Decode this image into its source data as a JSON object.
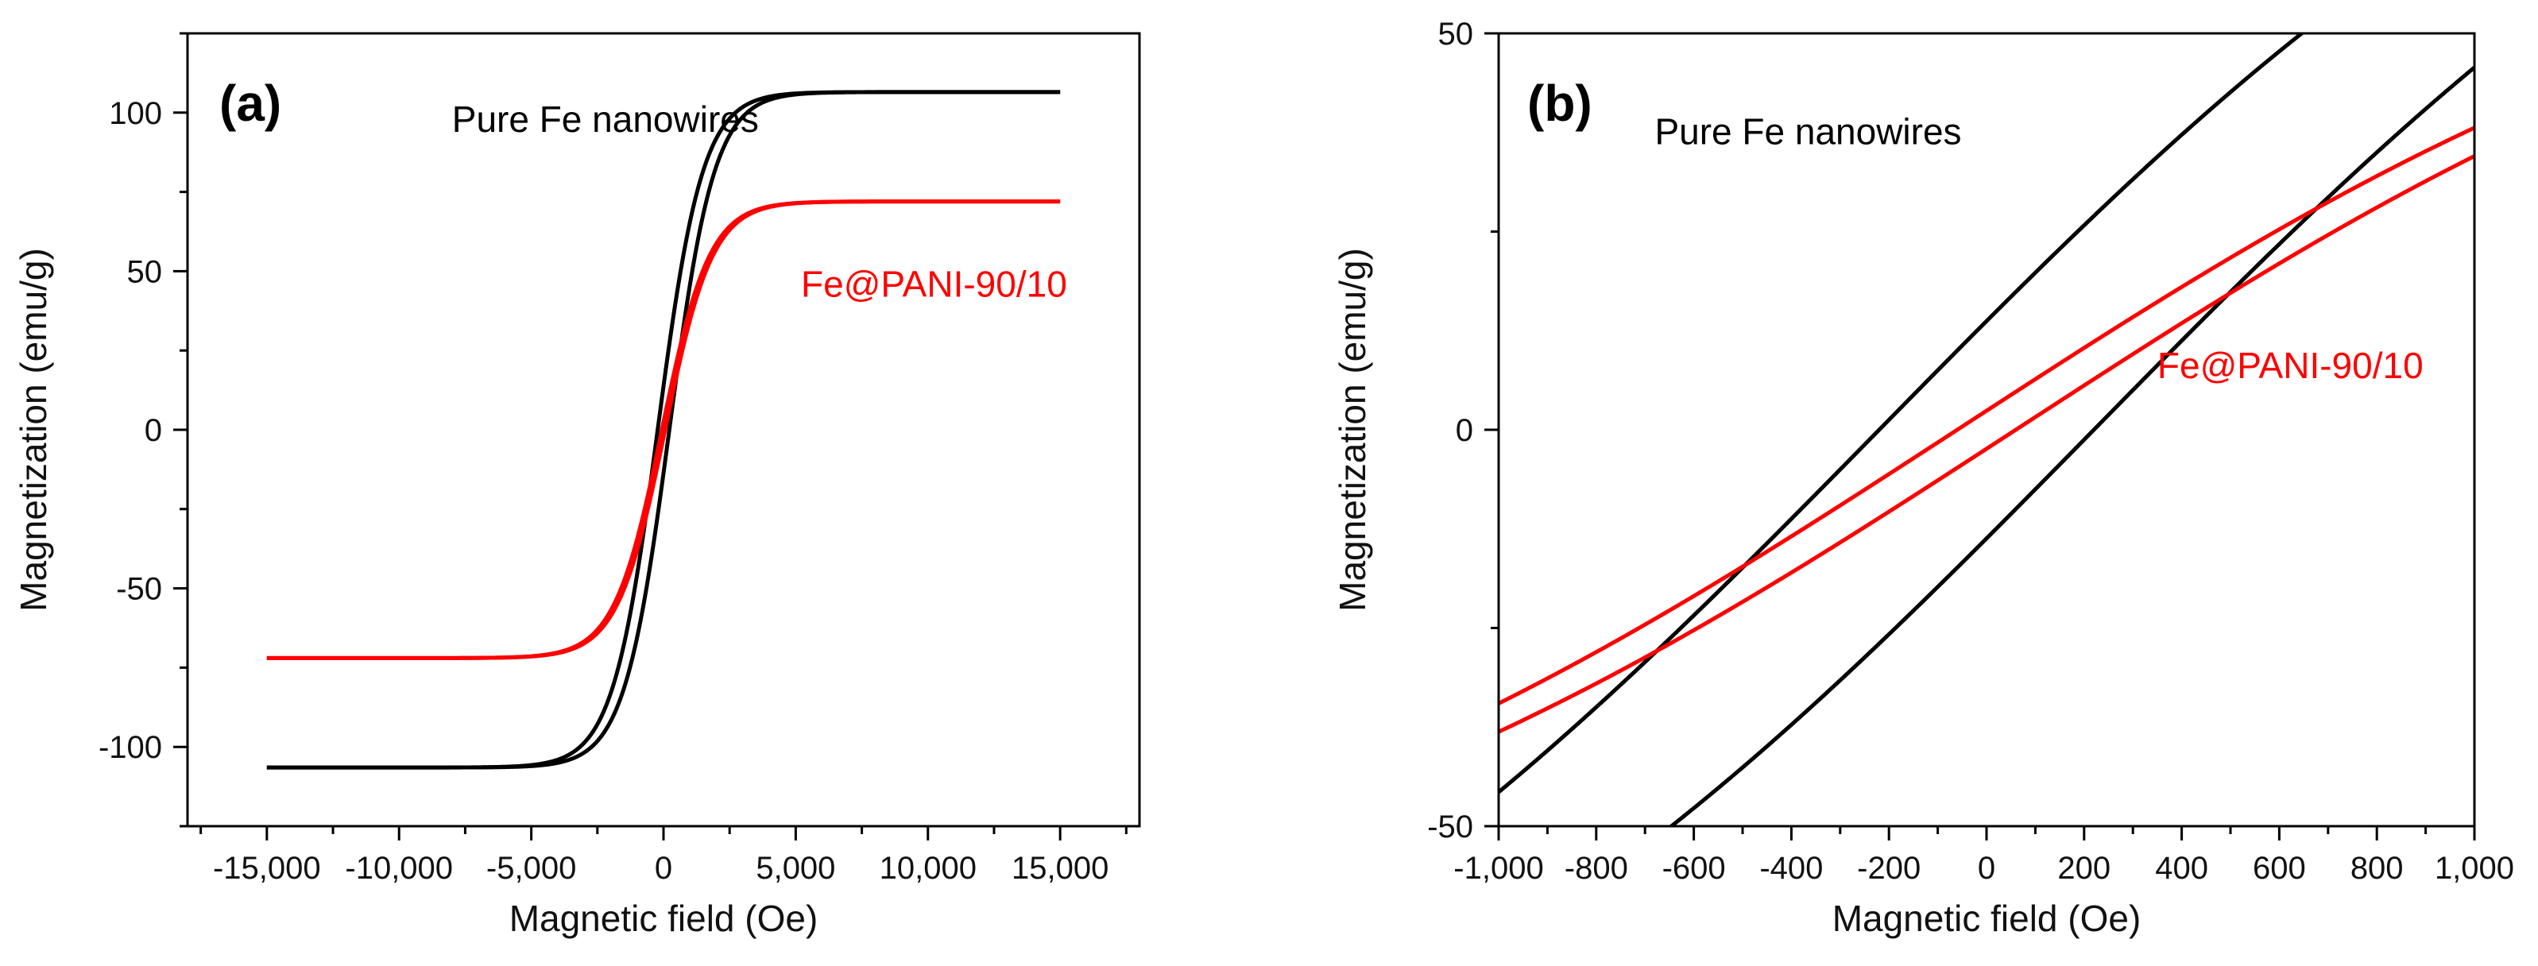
{
  "colors": {
    "pure_fe": "#000000",
    "fe_pani": "#ff0000",
    "axis": "#000000"
  },
  "chart_data": [
    {
      "type": "line",
      "panel_label": "(a)",
      "xlabel": "Magnetic field (Oe)",
      "ylabel": "Magnetization (emu/g)",
      "xlim": [
        -18000,
        18000
      ],
      "ylim": [
        -125,
        125
      ],
      "xticks": [
        -15000,
        -10000,
        -5000,
        0,
        5000,
        10000,
        15000
      ],
      "xtick_labels": [
        "-15,000",
        "-10,000",
        "-5,000",
        "0",
        "5,000",
        "10,000",
        "15,000"
      ],
      "yticks": [
        -100,
        -50,
        0,
        50,
        100
      ],
      "ytick_labels": [
        "-100",
        "-50",
        "0",
        "50",
        "100"
      ],
      "series": [
        {
          "name": "Pure Fe nanowires",
          "Ms": 106.5,
          "Hc": 220,
          "shape": 1700,
          "color": "#000000",
          "x_range": [
            -15000,
            15000
          ]
        },
        {
          "name": "Fe@PANI-90/10",
          "Ms": 72,
          "Hc": 60,
          "shape": 1800,
          "color": "#ff0000",
          "x_range": [
            -15000,
            15000
          ]
        }
      ],
      "annotations": [
        {
          "text": "Pure Fe nanowires",
          "x": -8000,
          "y": 94,
          "color": "#000000"
        },
        {
          "text": "Fe@PANI-90/10",
          "x": 5200,
          "y": 42,
          "color": "#ff0000"
        }
      ]
    },
    {
      "type": "line",
      "panel_label": "(b)",
      "xlabel": "Magnetic field (Oe)",
      "ylabel": "Magnetization (emu/g)",
      "xlim": [
        -1000,
        1000
      ],
      "ylim": [
        -50,
        50
      ],
      "xticks": [
        -1000,
        -800,
        -600,
        -400,
        -200,
        0,
        200,
        400,
        600,
        800,
        1000
      ],
      "xtick_labels": [
        "-1,000",
        "-800",
        "-600",
        "-400",
        "-200",
        "0",
        "200",
        "400",
        "600",
        "800",
        "1,000"
      ],
      "yticks": [
        -50,
        0,
        50
      ],
      "ytick_labels": [
        "-50",
        "0",
        "50"
      ],
      "series": [
        {
          "name": "Pure Fe nanowires",
          "Ms": 106.5,
          "Hc": 220,
          "shape": 1700,
          "color": "#000000",
          "x_range": [
            -1000,
            1000
          ]
        },
        {
          "name": "Fe@PANI-90/10",
          "Ms": 72,
          "Hc": 60,
          "shape": 1800,
          "color": "#ff0000",
          "x_range": [
            -1000,
            1000
          ]
        }
      ],
      "annotations": [
        {
          "text": "Pure Fe nanowires",
          "x": -680,
          "y": 36,
          "color": "#000000"
        },
        {
          "text": "Fe@PANI-90/10",
          "x": 350,
          "y": 6.5,
          "color": "#ff0000"
        }
      ]
    }
  ]
}
